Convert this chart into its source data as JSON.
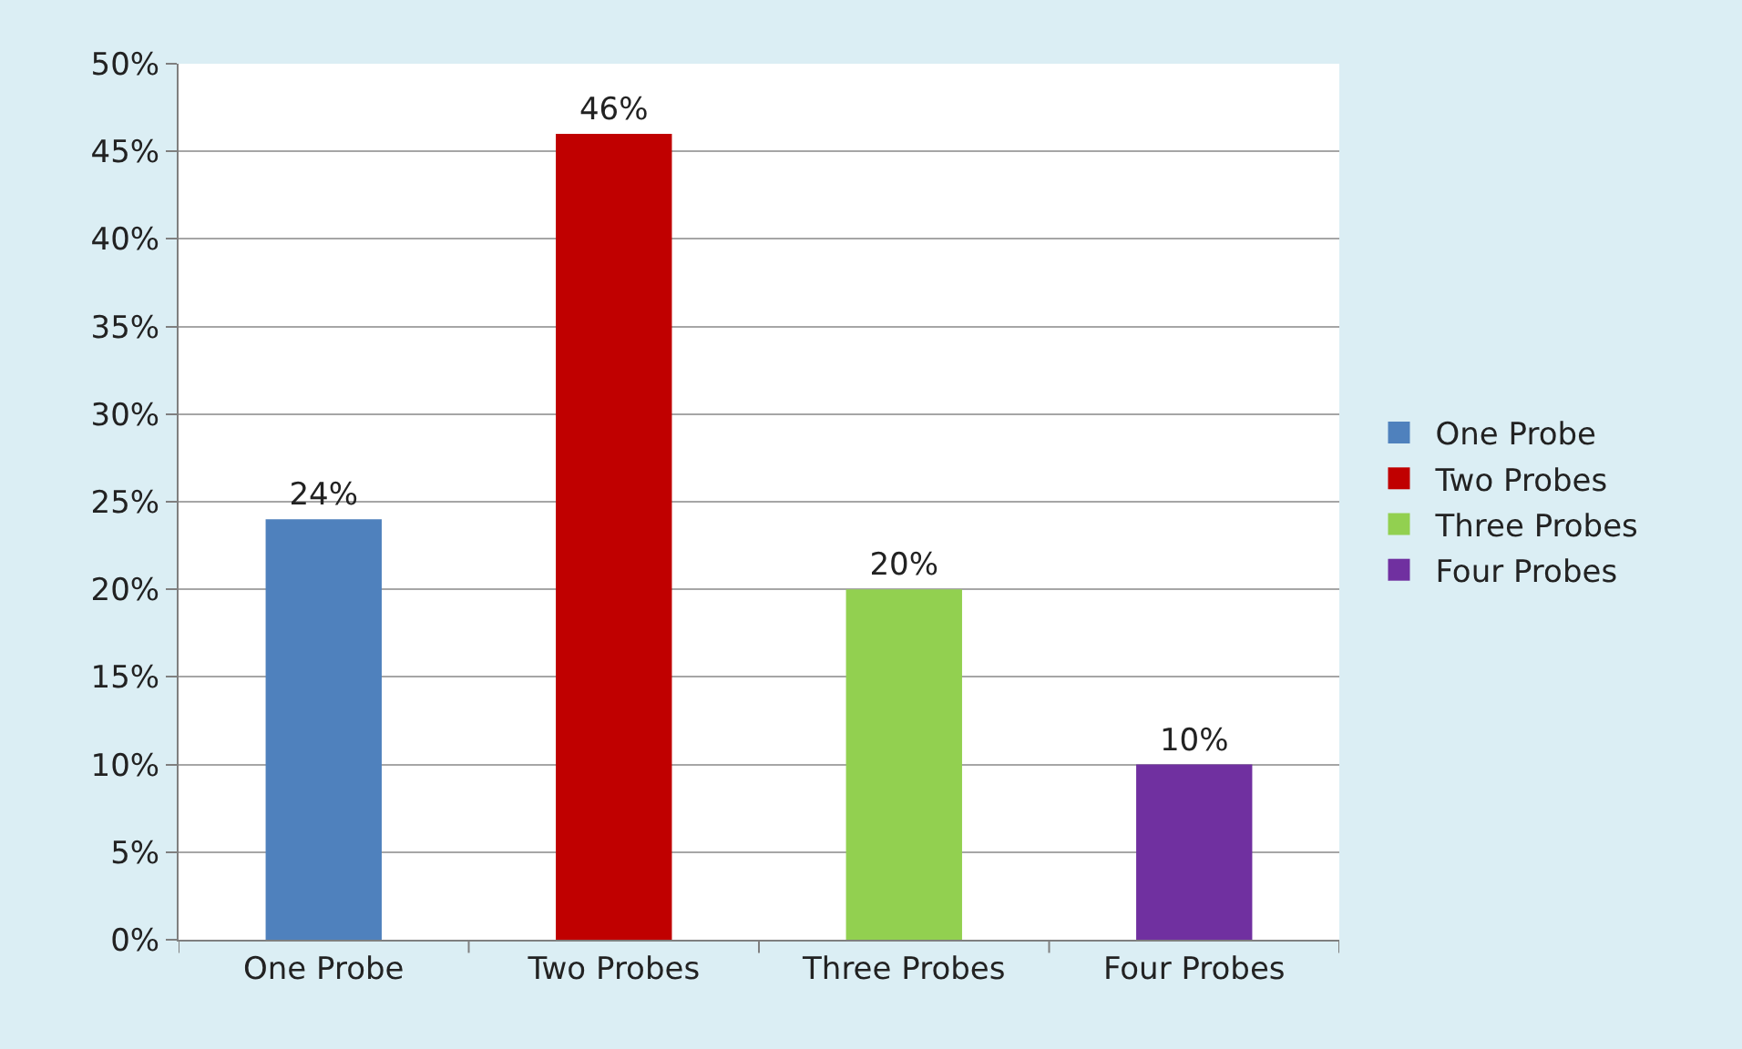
{
  "chart_data": {
    "type": "bar",
    "categories": [
      "One Probe",
      "Two Probes",
      "Three Probes",
      "Four Probes"
    ],
    "series": [
      {
        "name": "One Probe",
        "color": "#4f81bd",
        "values": [
          24,
          null,
          null,
          null
        ],
        "value_labels": [
          "24%",
          null,
          null,
          null
        ]
      },
      {
        "name": "Two Probes",
        "color": "#c00000",
        "values": [
          null,
          46,
          null,
          null
        ],
        "value_labels": [
          null,
          "46%",
          null,
          null
        ]
      },
      {
        "name": "Three Probes",
        "color": "#92d050",
        "values": [
          null,
          null,
          20,
          null
        ],
        "value_labels": [
          null,
          null,
          "20%",
          null
        ]
      },
      {
        "name": "Four Probes",
        "color": "#7030a0",
        "values": [
          null,
          null,
          null,
          10
        ],
        "value_labels": [
          null,
          null,
          null,
          "10%"
        ]
      }
    ],
    "ylim": [
      0,
      50
    ],
    "yticks": [
      {
        "value": 0,
        "label": "0%"
      },
      {
        "value": 5,
        "label": "5%"
      },
      {
        "value": 10,
        "label": "10%"
      },
      {
        "value": 15,
        "label": "15%"
      },
      {
        "value": 20,
        "label": "20%"
      },
      {
        "value": 25,
        "label": "25%"
      },
      {
        "value": 30,
        "label": "30%"
      },
      {
        "value": 35,
        "label": "35%"
      },
      {
        "value": 40,
        "label": "40%"
      },
      {
        "value": 45,
        "label": "45%"
      },
      {
        "value": 50,
        "label": "50%"
      }
    ],
    "grid": "y",
    "legend": "right"
  }
}
